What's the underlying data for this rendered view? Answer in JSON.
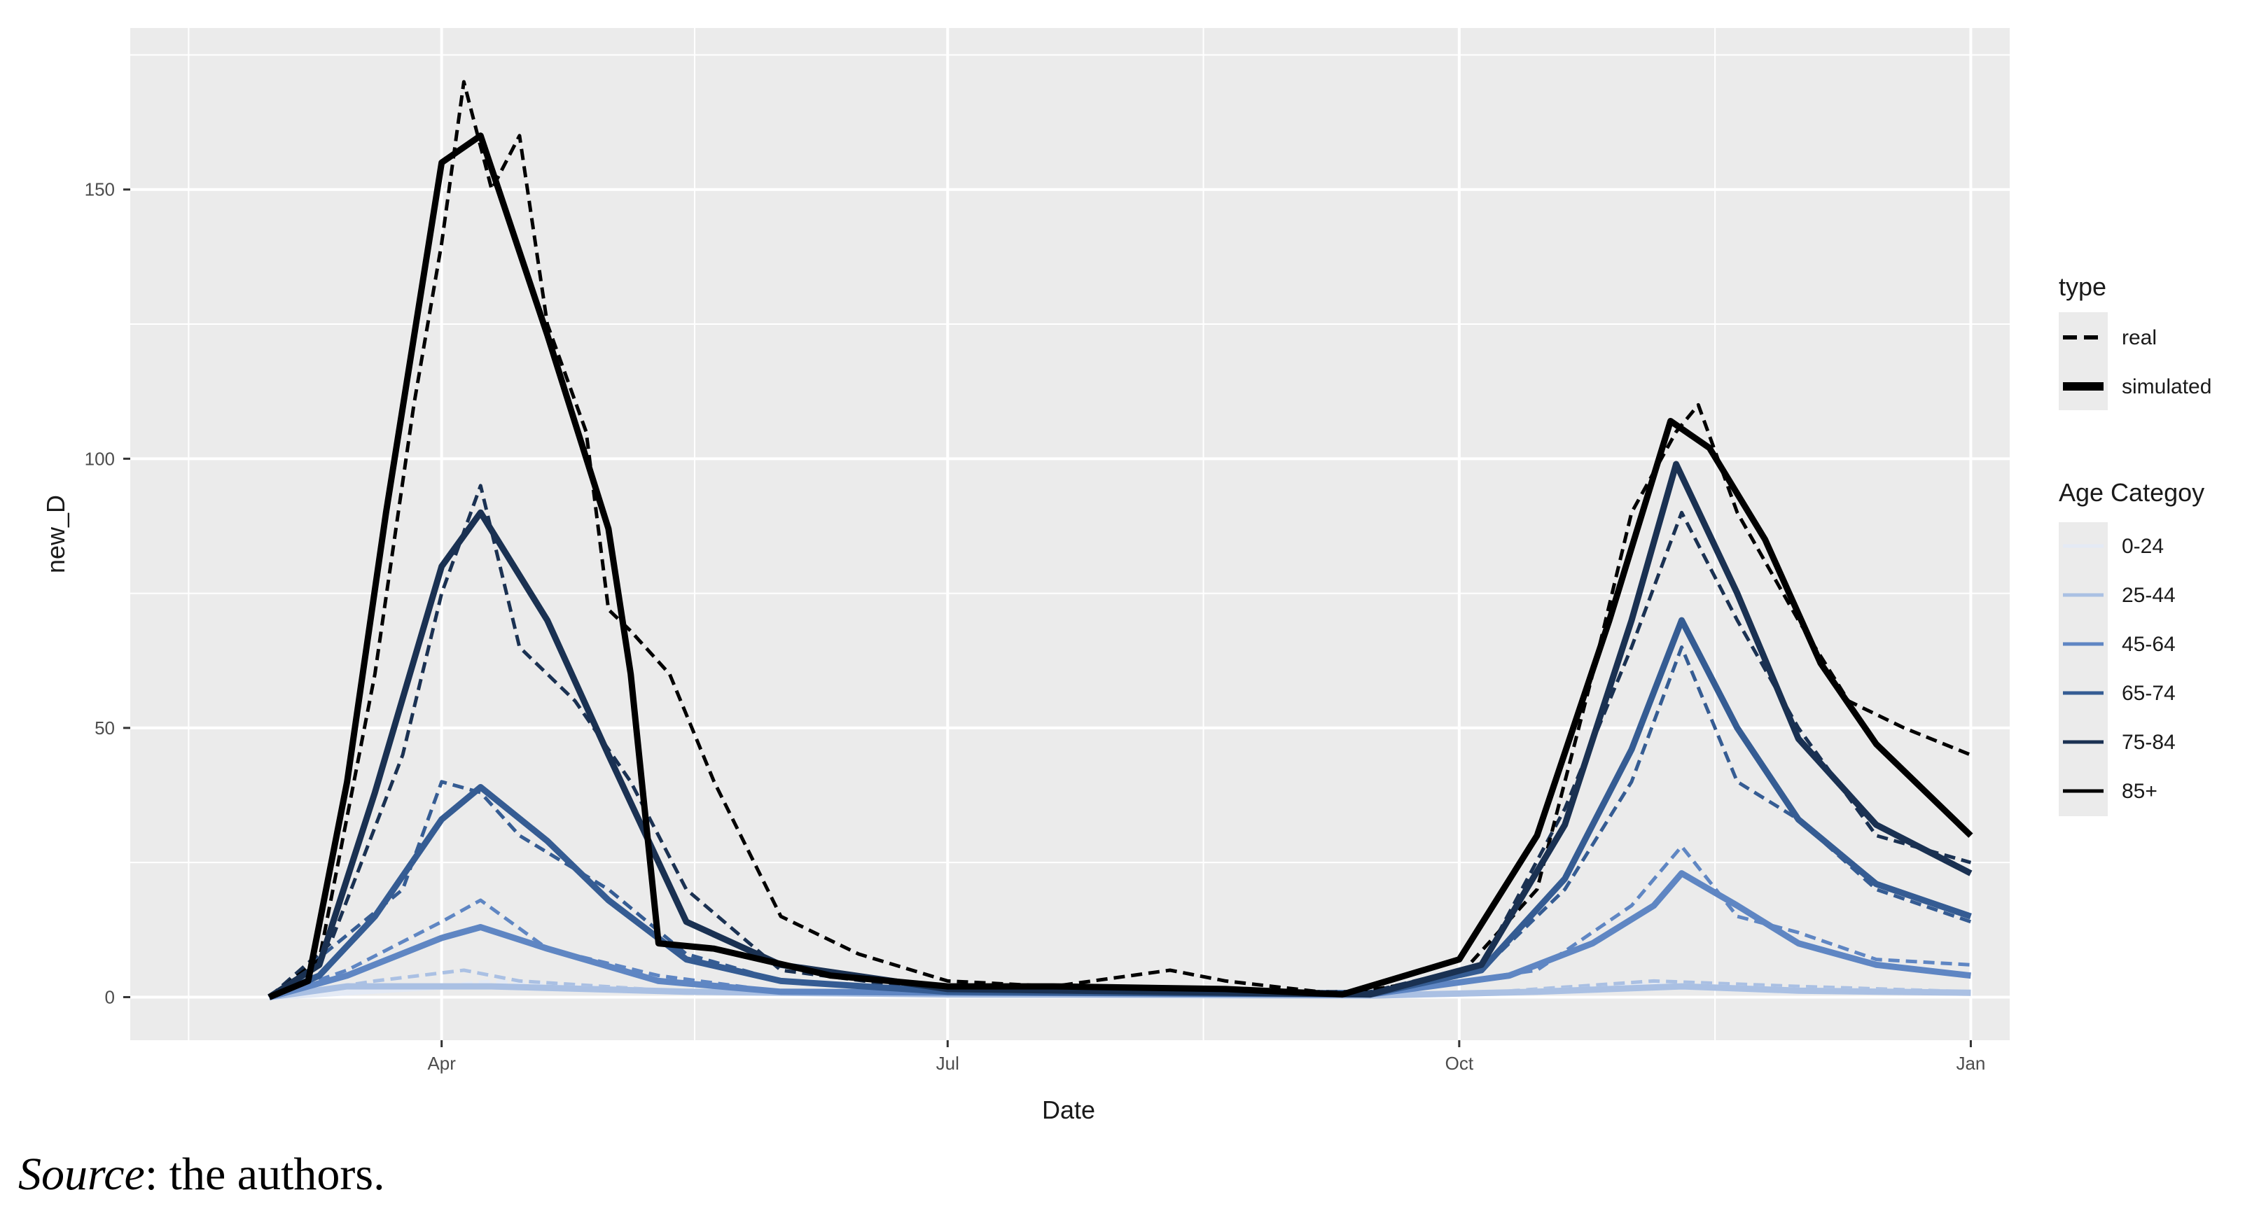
{
  "chart_data": {
    "type": "line",
    "title": "",
    "xlabel": "Date",
    "ylabel": "new_D",
    "x_type": "date",
    "xlim": [
      "2020-02-05",
      "2021-01-08"
    ],
    "ylim": [
      -8,
      180
    ],
    "x_ticks": [
      {
        "date": "2020-04-01",
        "label": "Apr"
      },
      {
        "date": "2020-07-01",
        "label": "Jul"
      },
      {
        "date": "2020-10-01",
        "label": "Oct"
      },
      {
        "date": "2021-01-01",
        "label": "Jan"
      }
    ],
    "y_ticks": [
      0,
      50,
      100,
      150
    ],
    "grid": true,
    "legend_position": "right",
    "legends": {
      "linetype": {
        "title": "type",
        "entries": [
          {
            "label": "real",
            "linetype": "dashed"
          },
          {
            "label": "simulated",
            "linetype": "solid"
          }
        ]
      },
      "color": {
        "title": "Age Categoy",
        "entries": [
          {
            "label": "0-24",
            "color": "#e4eaf5"
          },
          {
            "label": "25-44",
            "color": "#aac0e3"
          },
          {
            "label": "45-64",
            "color": "#5f86c3"
          },
          {
            "label": "65-74",
            "color": "#355c93"
          },
          {
            "label": "75-84",
            "color": "#1a3152"
          },
          {
            "label": "85+",
            "color": "#000000"
          }
        ]
      }
    },
    "series": [
      {
        "name": "0-24",
        "type": "simulated",
        "points": [
          [
            "2020-03-01",
            0
          ],
          [
            "2020-04-01",
            2
          ],
          [
            "2020-04-10",
            2
          ],
          [
            "2020-05-15",
            1
          ],
          [
            "2020-07-01",
            0.5
          ],
          [
            "2020-09-15",
            0.3
          ],
          [
            "2020-10-15",
            1
          ],
          [
            "2020-11-10",
            2
          ],
          [
            "2020-12-01",
            1.2
          ],
          [
            "2021-01-01",
            0.8
          ]
        ]
      },
      {
        "name": "25-44",
        "type": "simulated",
        "points": [
          [
            "2020-03-01",
            0
          ],
          [
            "2020-03-15",
            2
          ],
          [
            "2020-04-01",
            2
          ],
          [
            "2020-04-10",
            2
          ],
          [
            "2020-05-15",
            1
          ],
          [
            "2020-07-01",
            0.5
          ],
          [
            "2020-09-15",
            0.3
          ],
          [
            "2020-10-15",
            1
          ],
          [
            "2020-11-10",
            2
          ],
          [
            "2020-12-01",
            1.2
          ],
          [
            "2021-01-01",
            0.8
          ]
        ]
      },
      {
        "name": "45-64",
        "type": "simulated",
        "points": [
          [
            "2020-03-01",
            0
          ],
          [
            "2020-03-15",
            4
          ],
          [
            "2020-04-01",
            11
          ],
          [
            "2020-04-08",
            13
          ],
          [
            "2020-04-20",
            9
          ],
          [
            "2020-05-10",
            3
          ],
          [
            "2020-06-01",
            1
          ],
          [
            "2020-09-15",
            0.5
          ],
          [
            "2020-10-10",
            4
          ],
          [
            "2020-10-25",
            10
          ],
          [
            "2020-11-05",
            17
          ],
          [
            "2020-11-10",
            23
          ],
          [
            "2020-11-20",
            17
          ],
          [
            "2020-12-01",
            10
          ],
          [
            "2020-12-15",
            6
          ],
          [
            "2021-01-01",
            4
          ]
        ]
      },
      {
        "name": "65-74",
        "type": "simulated",
        "points": [
          [
            "2020-03-01",
            0
          ],
          [
            "2020-03-10",
            4
          ],
          [
            "2020-03-20",
            15
          ],
          [
            "2020-04-01",
            33
          ],
          [
            "2020-04-08",
            39
          ],
          [
            "2020-04-20",
            29
          ],
          [
            "2020-05-01",
            18
          ],
          [
            "2020-05-15",
            7
          ],
          [
            "2020-06-01",
            3
          ],
          [
            "2020-07-01",
            1
          ],
          [
            "2020-09-15",
            0.5
          ],
          [
            "2020-10-05",
            5
          ],
          [
            "2020-10-20",
            22
          ],
          [
            "2020-11-01",
            46
          ],
          [
            "2020-11-10",
            70
          ],
          [
            "2020-11-20",
            50
          ],
          [
            "2020-12-01",
            33
          ],
          [
            "2020-12-15",
            21
          ],
          [
            "2021-01-01",
            15
          ]
        ]
      },
      {
        "name": "75-84",
        "type": "simulated",
        "points": [
          [
            "2020-03-01",
            0
          ],
          [
            "2020-03-10",
            6
          ],
          [
            "2020-03-20",
            38
          ],
          [
            "2020-04-01",
            80
          ],
          [
            "2020-04-08",
            90
          ],
          [
            "2020-04-20",
            70
          ],
          [
            "2020-05-01",
            45
          ],
          [
            "2020-05-15",
            14
          ],
          [
            "2020-06-01",
            6
          ],
          [
            "2020-07-01",
            1.5
          ],
          [
            "2020-09-15",
            0.5
          ],
          [
            "2020-10-05",
            6
          ],
          [
            "2020-10-20",
            32
          ],
          [
            "2020-11-01",
            70
          ],
          [
            "2020-11-09",
            99
          ],
          [
            "2020-11-20",
            75
          ],
          [
            "2020-12-01",
            48
          ],
          [
            "2020-12-15",
            32
          ],
          [
            "2021-01-01",
            23
          ]
        ]
      },
      {
        "name": "85+",
        "type": "simulated",
        "points": [
          [
            "2020-03-01",
            0
          ],
          [
            "2020-03-08",
            3
          ],
          [
            "2020-03-15",
            40
          ],
          [
            "2020-03-22",
            90
          ],
          [
            "2020-04-01",
            155
          ],
          [
            "2020-04-08",
            160
          ],
          [
            "2020-04-20",
            123
          ],
          [
            "2020-05-01",
            87
          ],
          [
            "2020-05-05",
            60
          ],
          [
            "2020-05-10",
            10
          ],
          [
            "2020-05-20",
            9
          ],
          [
            "2020-06-10",
            4
          ],
          [
            "2020-07-01",
            2
          ],
          [
            "2020-07-20",
            2
          ],
          [
            "2020-08-20",
            1.5
          ],
          [
            "2020-09-10",
            0.5
          ],
          [
            "2020-10-01",
            7
          ],
          [
            "2020-10-15",
            30
          ],
          [
            "2020-10-28",
            70
          ],
          [
            "2020-11-08",
            107
          ],
          [
            "2020-11-15",
            102
          ],
          [
            "2020-11-25",
            85
          ],
          [
            "2020-12-05",
            62
          ],
          [
            "2020-12-15",
            47
          ],
          [
            "2021-01-01",
            30
          ]
        ]
      },
      {
        "name": "0-24",
        "type": "real",
        "points": [
          [
            "2020-03-01",
            0
          ],
          [
            "2020-04-01",
            2
          ],
          [
            "2020-04-10",
            3
          ],
          [
            "2020-05-15",
            1
          ],
          [
            "2020-07-01",
            0.5
          ],
          [
            "2020-10-01",
            0.5
          ],
          [
            "2020-11-05",
            2.5
          ],
          [
            "2020-12-01",
            1
          ],
          [
            "2021-01-01",
            1
          ]
        ]
      },
      {
        "name": "25-44",
        "type": "real",
        "points": [
          [
            "2020-03-01",
            0
          ],
          [
            "2020-03-20",
            3
          ],
          [
            "2020-04-05",
            5
          ],
          [
            "2020-04-15",
            3
          ],
          [
            "2020-05-15",
            1
          ],
          [
            "2020-07-01",
            0.5
          ],
          [
            "2020-10-01",
            0.5
          ],
          [
            "2020-11-05",
            3
          ],
          [
            "2020-12-01",
            2
          ],
          [
            "2021-01-01",
            1
          ]
        ]
      },
      {
        "name": "45-64",
        "type": "real",
        "points": [
          [
            "2020-03-01",
            0
          ],
          [
            "2020-03-15",
            5
          ],
          [
            "2020-04-01",
            14
          ],
          [
            "2020-04-08",
            18
          ],
          [
            "2020-04-20",
            9
          ],
          [
            "2020-05-10",
            4
          ],
          [
            "2020-06-01",
            1
          ],
          [
            "2020-09-15",
            0.5
          ],
          [
            "2020-10-15",
            5
          ],
          [
            "2020-11-01",
            17
          ],
          [
            "2020-11-10",
            28
          ],
          [
            "2020-11-20",
            15
          ],
          [
            "2020-12-01",
            12
          ],
          [
            "2020-12-15",
            7
          ],
          [
            "2021-01-01",
            6
          ]
        ]
      },
      {
        "name": "65-74",
        "type": "real",
        "points": [
          [
            "2020-03-01",
            0
          ],
          [
            "2020-03-12",
            9
          ],
          [
            "2020-03-25",
            20
          ],
          [
            "2020-04-01",
            40
          ],
          [
            "2020-04-08",
            38
          ],
          [
            "2020-04-15",
            30
          ],
          [
            "2020-05-01",
            20
          ],
          [
            "2020-05-15",
            8
          ],
          [
            "2020-06-01",
            3
          ],
          [
            "2020-07-01",
            1
          ],
          [
            "2020-09-15",
            1
          ],
          [
            "2020-10-05",
            5
          ],
          [
            "2020-10-20",
            20
          ],
          [
            "2020-11-01",
            40
          ],
          [
            "2020-11-10",
            65
          ],
          [
            "2020-11-20",
            40
          ],
          [
            "2020-12-01",
            33
          ],
          [
            "2020-12-15",
            20
          ],
          [
            "2021-01-01",
            14
          ]
        ]
      },
      {
        "name": "75-84",
        "type": "real",
        "points": [
          [
            "2020-03-01",
            0
          ],
          [
            "2020-03-12",
            10
          ],
          [
            "2020-03-25",
            45
          ],
          [
            "2020-04-01",
            75
          ],
          [
            "2020-04-08",
            95
          ],
          [
            "2020-04-15",
            65
          ],
          [
            "2020-04-25",
            55
          ],
          [
            "2020-05-05",
            40
          ],
          [
            "2020-05-15",
            20
          ],
          [
            "2020-06-01",
            5
          ],
          [
            "2020-07-01",
            1
          ],
          [
            "2020-09-15",
            1
          ],
          [
            "2020-10-05",
            6
          ],
          [
            "2020-10-20",
            35
          ],
          [
            "2020-11-01",
            65
          ],
          [
            "2020-11-10",
            90
          ],
          [
            "2020-11-20",
            70
          ],
          [
            "2020-12-01",
            50
          ],
          [
            "2020-12-15",
            30
          ],
          [
            "2021-01-01",
            25
          ]
        ]
      },
      {
        "name": "85+",
        "type": "real",
        "points": [
          [
            "2020-03-01",
            0
          ],
          [
            "2020-03-10",
            7
          ],
          [
            "2020-03-20",
            60
          ],
          [
            "2020-03-27",
            110
          ],
          [
            "2020-04-01",
            140
          ],
          [
            "2020-04-05",
            170
          ],
          [
            "2020-04-10",
            150
          ],
          [
            "2020-04-15",
            160
          ],
          [
            "2020-04-20",
            125
          ],
          [
            "2020-04-27",
            105
          ],
          [
            "2020-05-01",
            72
          ],
          [
            "2020-05-05",
            68
          ],
          [
            "2020-05-12",
            60
          ],
          [
            "2020-05-20",
            40
          ],
          [
            "2020-06-01",
            15
          ],
          [
            "2020-06-15",
            8
          ],
          [
            "2020-07-01",
            3
          ],
          [
            "2020-07-20",
            2
          ],
          [
            "2020-08-10",
            5
          ],
          [
            "2020-08-20",
            3
          ],
          [
            "2020-09-10",
            0.5
          ],
          [
            "2020-10-01",
            4
          ],
          [
            "2020-10-15",
            20
          ],
          [
            "2020-10-25",
            60
          ],
          [
            "2020-11-01",
            90
          ],
          [
            "2020-11-09",
            105
          ],
          [
            "2020-11-13",
            110
          ],
          [
            "2020-11-20",
            90
          ],
          [
            "2020-12-01",
            70
          ],
          [
            "2020-12-10",
            55
          ],
          [
            "2020-12-20",
            50
          ],
          [
            "2021-01-01",
            45
          ]
        ]
      }
    ]
  },
  "source_note": {
    "label": "Source",
    "text": ": the authors."
  }
}
